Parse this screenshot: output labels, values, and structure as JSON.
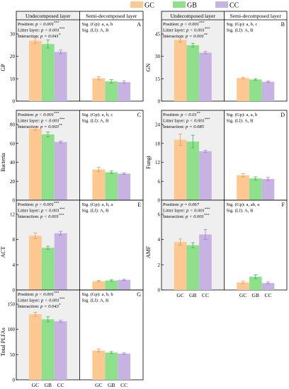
{
  "legend": [
    {
      "name": "GC",
      "color": "#FDC891"
    },
    {
      "name": "GB",
      "color": "#8FE08A"
    },
    {
      "name": "CC",
      "color": "#C7B3E2"
    }
  ],
  "layers": [
    "Undecomposed layer",
    "Semi-decomposed layer"
  ],
  "categories": [
    "GC",
    "GB",
    "CC"
  ],
  "chart_data": [
    {
      "type": "bar",
      "panel": "A",
      "ylabel": "GP",
      "ylim": [
        0,
        30
      ],
      "yticks": [
        0,
        10,
        20,
        30
      ],
      "series": [
        {
          "name": "Undecomposed layer",
          "values": [
            27.0,
            25.5,
            22.0
          ],
          "errors": [
            1.2,
            1.8,
            0.8
          ]
        },
        {
          "name": "Semi-decomposed layer",
          "values": [
            10.2,
            8.8,
            8.5
          ],
          "errors": [
            0.7,
            0.8,
            0.6
          ]
        }
      ],
      "stats_left": [
        {
          "label": "Position: ",
          "p": "p < 0.001",
          "sig": "***"
        },
        {
          "label": "Litter layer: ",
          "p": "p < 0.001",
          "sig": "***"
        },
        {
          "label": "Interaction: ",
          "p": "p = 0.041",
          "sig": "*"
        }
      ],
      "stats_right": [
        "Sig. (Gp): a, a, b",
        "Sig. (Ll): A, B"
      ]
    },
    {
      "type": "bar",
      "panel": "B",
      "ylabel": "GN",
      "ylim": [
        0,
        45
      ],
      "yticks": [
        0,
        15,
        30,
        45
      ],
      "series": [
        {
          "name": "Undecomposed layer",
          "values": [
            41.0,
            37.5,
            32.5
          ],
          "errors": [
            1.5,
            1.2,
            0.8
          ]
        },
        {
          "name": "Semi-decomposed layer",
          "values": [
            15.5,
            14.5,
            13.0
          ],
          "errors": [
            0.6,
            0.5,
            0.4
          ]
        }
      ],
      "stats_left": [
        {
          "label": "Position: ",
          "p": "p < 0.001",
          "sig": "***"
        },
        {
          "label": "Litter layer: ",
          "p": "p < 0.001",
          "sig": "***"
        },
        {
          "label": "Interaction: ",
          "p": "p = 0.001",
          "sig": "**"
        }
      ],
      "stats_right": [
        "Sig. (Gp): a, b, c",
        "Sig. (Ll): A, B"
      ]
    },
    {
      "type": "bar",
      "panel": "C",
      "ylabel": "Bacteria",
      "ylim": [
        0,
        80
      ],
      "yticks": [
        0,
        20,
        40,
        60,
        80
      ],
      "series": [
        {
          "name": "Undecomposed layer",
          "values": [
            75.5,
            69.5,
            61.5
          ],
          "errors": [
            2.0,
            2.5,
            1.0
          ]
        },
        {
          "name": "Semi-decomposed layer",
          "values": [
            32.5,
            29.5,
            28.0
          ],
          "errors": [
            2.2,
            1.3,
            0.8
          ]
        }
      ],
      "stats_left": [
        {
          "label": "Position: ",
          "p": "p < 0.001",
          "sig": "***"
        },
        {
          "label": "Litter layer: ",
          "p": "p < 0.001",
          "sig": "***"
        },
        {
          "label": "Interaction: ",
          "p": "p = 0.003",
          "sig": "**"
        }
      ],
      "stats_right": [
        "Sig. (Gp): a, b, c",
        "Sig. (Ll): A, B"
      ]
    },
    {
      "type": "bar",
      "panel": "D",
      "ylabel": "Fungi",
      "ylim": [
        0,
        24
      ],
      "yticks": [
        0,
        6,
        12,
        18,
        24
      ],
      "series": [
        {
          "name": "Undecomposed layer",
          "values": [
            19.2,
            18.6,
            15.5
          ],
          "errors": [
            1.8,
            2.0,
            0.3
          ]
        },
        {
          "name": "Semi-decomposed layer",
          "values": [
            7.9,
            6.9,
            6.7
          ],
          "errors": [
            0.5,
            0.5,
            0.5
          ]
        }
      ],
      "stats_left": [
        {
          "label": "Position: ",
          "p": "p < 0.01",
          "sig": "**"
        },
        {
          "label": "Litter layer: ",
          "p": "p < 0.001",
          "sig": "***"
        },
        {
          "label": "Interaction: ",
          "p": "p = 0.085",
          "sig": ""
        }
      ],
      "stats_right": [
        "Sig. (Gp): a, a, b",
        "Sig. (Ll): A, B"
      ]
    },
    {
      "type": "bar",
      "panel": "E",
      "ylabel": "ACT",
      "ylim": [
        0,
        12
      ],
      "yticks": [
        0,
        4,
        8,
        12
      ],
      "series": [
        {
          "name": "Undecomposed layer",
          "values": [
            8.6,
            6.7,
            9.0
          ],
          "errors": [
            0.45,
            0.25,
            0.3
          ]
        },
        {
          "name": "Semi-decomposed layer",
          "values": [
            1.4,
            1.5,
            1.6
          ],
          "errors": [
            0.1,
            0.1,
            0.1
          ]
        }
      ],
      "stats_left": [
        {
          "label": "Position: ",
          "p": "p < 0.001",
          "sig": "***"
        },
        {
          "label": "Litter layer: ",
          "p": "p < 0.001",
          "sig": "***"
        },
        {
          "label": "Interaction: ",
          "p": "p < 0.001",
          "sig": "***"
        }
      ],
      "stats_right": [
        "Sig. (Gp): a, b, a",
        "Sig. (Ll): A, B"
      ]
    },
    {
      "type": "bar",
      "panel": "F",
      "ylabel": "AMF",
      "ylim": [
        0,
        6
      ],
      "yticks": [
        0,
        2,
        4,
        6
      ],
      "series": [
        {
          "name": "Undecomposed layer",
          "values": [
            3.8,
            3.55,
            4.4
          ],
          "errors": [
            0.25,
            0.2,
            0.4
          ]
        },
        {
          "name": "Semi-decomposed layer",
          "values": [
            0.6,
            1.05,
            0.55
          ],
          "errors": [
            0.1,
            0.15,
            0.08
          ]
        }
      ],
      "stats_left": [
        {
          "label": "Position: ",
          "p": "p = 0.067",
          "sig": ""
        },
        {
          "label": "Litter layer: ",
          "p": "p < 0.001",
          "sig": "***"
        },
        {
          "label": "Interaction: ",
          "p": "p < 0.001",
          "sig": "***"
        }
      ],
      "stats_right": [
        "Sig. (Gp): a, ab, a",
        "Sig. (Ll): A, B"
      ]
    },
    {
      "type": "bar",
      "panel": "G",
      "ylabel": "Total PLFAs",
      "ylim": [
        0,
        150
      ],
      "yticks": [
        0,
        50,
        100,
        150
      ],
      "series": [
        {
          "name": "Undecomposed layer",
          "values": [
            130.0,
            120.0,
            116.0
          ],
          "errors": [
            4.0,
            5.0,
            2.0
          ]
        },
        {
          "name": "Semi-decomposed layer",
          "values": [
            58.0,
            54.0,
            52.0
          ],
          "errors": [
            3.0,
            2.0,
            1.5
          ]
        }
      ],
      "stats_left": [
        {
          "label": "Position: ",
          "p": "p < 0.001",
          "sig": "***"
        },
        {
          "label": "Litter layer: ",
          "p": "p < 0.001",
          "sig": "***"
        },
        {
          "label": "Interaction: ",
          "p": "p = 0.043",
          "sig": "*"
        }
      ],
      "stats_right": [
        "Sig. (Gp): a, b, b",
        "Sig. (Ll): A, B"
      ]
    }
  ]
}
